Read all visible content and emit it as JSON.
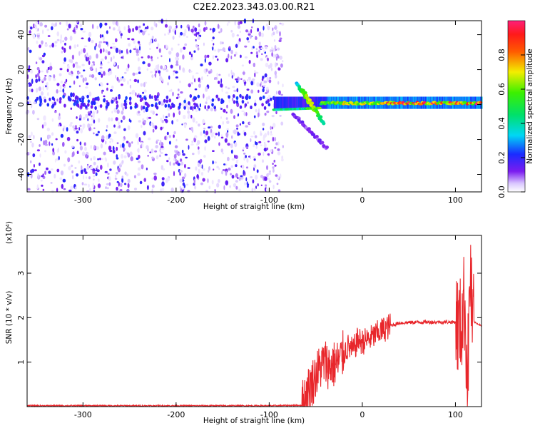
{
  "title": "C2E2.2023.343.03.00.R21",
  "colors": {
    "snr_line": "#e8262b",
    "fill_high_sparse": "#7b1cf0",
    "background": "#ffffff"
  },
  "chart_data": [
    {
      "type": "heatmap",
      "xlabel": "Height of straight line (km)",
      "ylabel": "Frequency (Hz)",
      "xlim": [
        -360,
        128
      ],
      "ylim": [
        -50,
        48
      ],
      "x_ticks": [
        -300,
        -200,
        -100,
        0,
        100
      ],
      "y_ticks": [
        -40,
        -20,
        0,
        20,
        40
      ],
      "grid": false,
      "colorbar": {
        "label": "Normalized spectral amplitude",
        "range": [
          0.0,
          1.0
        ],
        "ticks": [
          0.0,
          0.2,
          0.4,
          0.6,
          0.8
        ],
        "colormap": "rainbow: white-violet-blue-cyan-green-yellow-red-magenta"
      },
      "features": [
        {
          "name": "noise-region",
          "x_range": [
            -360,
            -95
          ],
          "amplitude": "0.05-0.2 scattered"
        },
        {
          "name": "main-echo-band",
          "x_range": [
            -95,
            128
          ],
          "frequency_hz": [
            0,
            2
          ],
          "amplitude": "0.5-1.0"
        },
        {
          "name": "upper-branch",
          "from": [
            -70,
            12
          ],
          "to": [
            -42,
            -10
          ],
          "amplitude": "0.3-0.6"
        },
        {
          "name": "lower-branch",
          "from": [
            -75,
            -5
          ],
          "to": [
            -38,
            -25
          ],
          "amplitude": "0.05-0.15"
        }
      ]
    },
    {
      "type": "line",
      "xlabel": "Height of straight line (km)",
      "ylabel": "SNR (10 * v/v)",
      "yscale_label": "(x10⁴)",
      "xlim": [
        -360,
        128
      ],
      "ylim": [
        0,
        3.85
      ],
      "x_ticks": [
        -300,
        -200,
        -100,
        0,
        100
      ],
      "y_ticks": [
        1,
        2,
        3
      ],
      "grid": false,
      "series": [
        {
          "color": "#e8262b",
          "x": [
            -360,
            -100,
            -65,
            -60,
            -55,
            -50,
            -45,
            -40,
            -35,
            -30,
            -25,
            -20,
            -15,
            -10,
            -5,
            0,
            10,
            20,
            30,
            40,
            60,
            80,
            100,
            105,
            110,
            113,
            116,
            118,
            120,
            128
          ],
          "y": [
            0.02,
            0.02,
            0.03,
            0.3,
            0.5,
            0.7,
            0.9,
            1.0,
            0.9,
            0.95,
            1.0,
            1.2,
            1.35,
            1.25,
            1.5,
            1.45,
            1.55,
            1.7,
            1.82,
            1.88,
            1.9,
            1.9,
            1.9,
            1.75,
            2.4,
            0.5,
            3.2,
            1.8,
            1.9,
            1.82
          ]
        }
      ]
    }
  ]
}
